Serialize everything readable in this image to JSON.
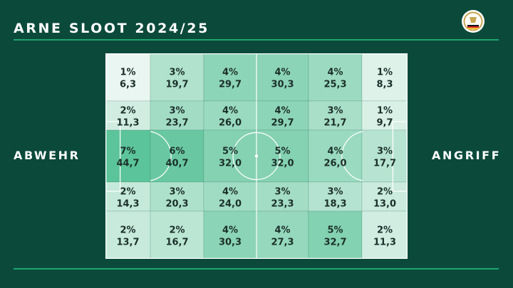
{
  "header": {
    "title": "ARNE SLOOT 2024/25"
  },
  "labels": {
    "left": "ABWEHR",
    "right": "ANGRIFF"
  },
  "colors": {
    "background": "#0b4a3a",
    "accent": "#1fa36d",
    "cell_light": "#eaf6f1",
    "cell_dark": "#5cc49a",
    "text": "#1b2f2a"
  },
  "logo": {
    "icon": "dfb-crest-icon"
  },
  "chart_data": {
    "type": "heatmap",
    "columns": 6,
    "rows": 5,
    "cells": [
      [
        {
          "pct": "1%",
          "value": "6,3"
        },
        {
          "pct": "3%",
          "value": "19,7"
        },
        {
          "pct": "4%",
          "value": "29,7"
        },
        {
          "pct": "4%",
          "value": "30,3"
        },
        {
          "pct": "4%",
          "value": "25,3"
        },
        {
          "pct": "1%",
          "value": "8,3"
        }
      ],
      [
        {
          "pct": "2%",
          "value": "11,3"
        },
        {
          "pct": "3%",
          "value": "23,7"
        },
        {
          "pct": "4%",
          "value": "26,0"
        },
        {
          "pct": "4%",
          "value": "29,7"
        },
        {
          "pct": "3%",
          "value": "21,7"
        },
        {
          "pct": "1%",
          "value": "9,7"
        }
      ],
      [
        {
          "pct": "7%",
          "value": "44,7"
        },
        {
          "pct": "6%",
          "value": "40,7"
        },
        {
          "pct": "5%",
          "value": "32,0"
        },
        {
          "pct": "5%",
          "value": "32,0"
        },
        {
          "pct": "4%",
          "value": "26,0"
        },
        {
          "pct": "3%",
          "value": "17,7"
        }
      ],
      [
        {
          "pct": "2%",
          "value": "14,3"
        },
        {
          "pct": "3%",
          "value": "20,3"
        },
        {
          "pct": "4%",
          "value": "24,0"
        },
        {
          "pct": "3%",
          "value": "23,3"
        },
        {
          "pct": "3%",
          "value": "18,3"
        },
        {
          "pct": "2%",
          "value": "13,0"
        }
      ],
      [
        {
          "pct": "2%",
          "value": "13,7"
        },
        {
          "pct": "2%",
          "value": "16,7"
        },
        {
          "pct": "4%",
          "value": "30,3"
        },
        {
          "pct": "4%",
          "value": "27,3"
        },
        {
          "pct": "5%",
          "value": "32,7"
        },
        {
          "pct": "2%",
          "value": "11,3"
        }
      ]
    ]
  }
}
